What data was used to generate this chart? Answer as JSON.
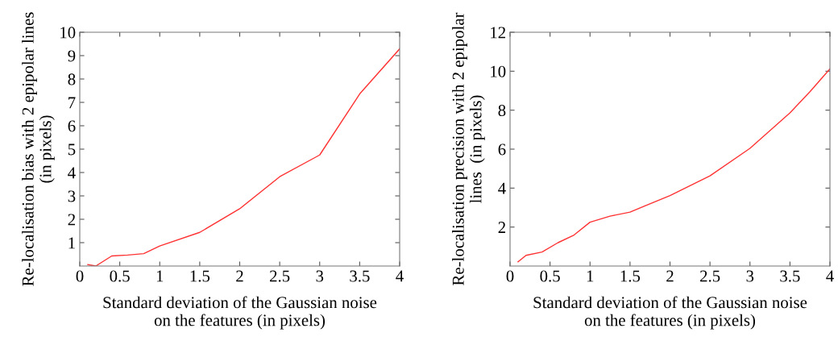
{
  "chart_data": [
    {
      "type": "line",
      "xlabel": "Standard deviation of the Gaussian noise\non the features (in pixels)",
      "ylabel": "Re-localisation bias with 2 epipolar lines\n(in pixels)",
      "x": [
        0.1,
        0.2,
        0.4,
        0.6,
        0.8,
        1.0,
        1.5,
        2.0,
        2.5,
        3.0,
        3.5,
        4.0
      ],
      "series": [
        {
          "color": "#ff3333",
          "values": [
            0.06,
            0.0,
            0.43,
            0.47,
            0.53,
            0.86,
            1.44,
            2.45,
            3.82,
            4.75,
            7.36,
            9.29
          ]
        }
      ],
      "xlim": [
        0,
        4
      ],
      "xticks": [
        0,
        0.5,
        1,
        1.5,
        2,
        2.5,
        3,
        3.5,
        4
      ],
      "ylim": [
        0,
        10
      ],
      "yticks": [
        1,
        2,
        3,
        4,
        5,
        6,
        7,
        8,
        9,
        10
      ],
      "grid": false,
      "legend": false
    },
    {
      "type": "line",
      "xlabel": "Standard deviation of the Gaussian noise\non the features (in pixels)",
      "ylabel": "Re-localisation precision with 2 epipolar\nlines  (in pixels)",
      "x": [
        0.1,
        0.2,
        0.4,
        0.6,
        0.8,
        1.0,
        1.25,
        1.5,
        2.0,
        2.5,
        3.0,
        3.5,
        3.75,
        4.0
      ],
      "series": [
        {
          "color": "#ff3333",
          "values": [
            0.22,
            0.55,
            0.72,
            1.2,
            1.59,
            2.25,
            2.56,
            2.77,
            3.62,
            4.63,
            6.04,
            7.86,
            8.95,
            10.12
          ]
        }
      ],
      "xlim": [
        0,
        4
      ],
      "xticks": [
        0,
        0.5,
        1,
        1.5,
        2,
        2.5,
        3,
        3.5,
        4
      ],
      "ylim": [
        0,
        12
      ],
      "yticks": [
        2,
        4,
        6,
        8,
        10,
        12
      ],
      "grid": false,
      "legend": false
    }
  ]
}
